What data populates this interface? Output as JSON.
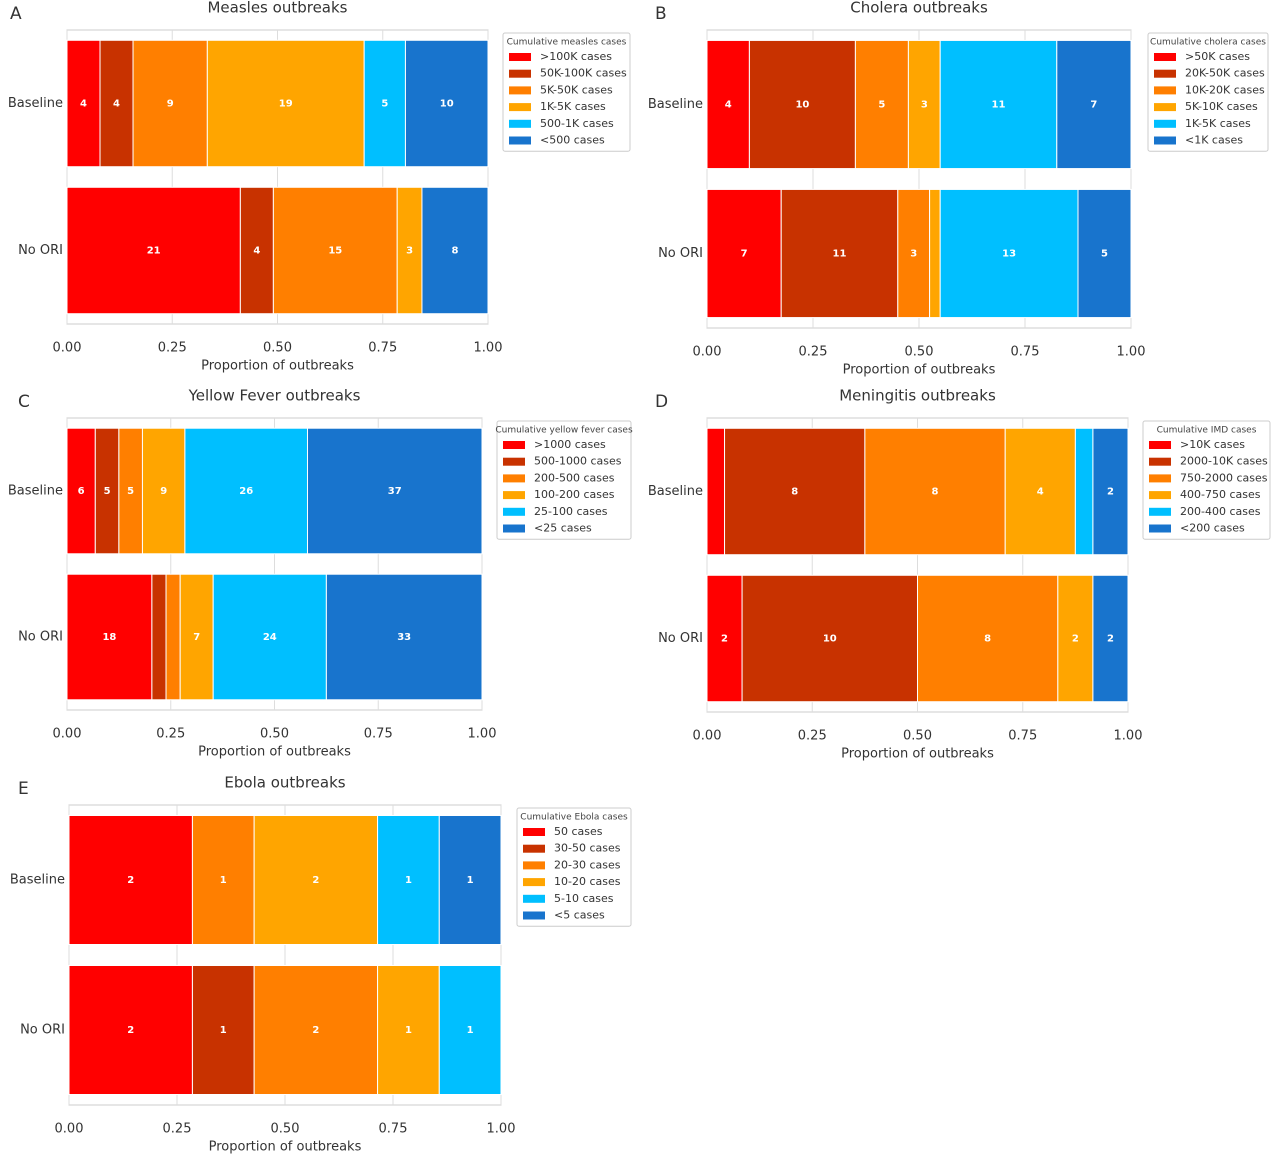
{
  "chart_data": [
    {
      "type": "bar",
      "orientation": "horizontal",
      "stacked": "percent",
      "panel_label": "A",
      "title": "Measles outbreaks",
      "xlabel": "Proportion of outbreaks",
      "legend_title": "Cumulative measles cases",
      "grid": true,
      "categories": [
        "Baseline",
        "No ORI"
      ],
      "series": [
        {
          "name": ">100K cases",
          "color": "#ff0000",
          "values": [
            4,
            21
          ]
        },
        {
          "name": "50K-100K cases",
          "color": "#c83200",
          "values": [
            4,
            4
          ]
        },
        {
          "name": "5K-50K cases",
          "color": "#ff7f00",
          "values": [
            9,
            15
          ]
        },
        {
          "name": "1K-5K cases",
          "color": "#ffa500",
          "values": [
            19,
            3
          ]
        },
        {
          "name": "500-1K cases",
          "color": "#00bfff",
          "values": [
            5,
            0
          ]
        },
        {
          "name": "<500 cases",
          "color": "#1874cd",
          "values": [
            10,
            8
          ]
        }
      ],
      "xlim": [
        0,
        1
      ],
      "xticks": [
        {
          "value": 0,
          "label": "0.00"
        },
        {
          "value": 0.25,
          "label": "0.25"
        },
        {
          "value": 0.5,
          "label": "0.50"
        },
        {
          "value": 0.75,
          "label": "0.75"
        },
        {
          "value": 1,
          "label": "1.00"
        }
      ]
    },
    {
      "type": "bar",
      "orientation": "horizontal",
      "stacked": "percent",
      "panel_label": "B",
      "title": "Cholera outbreaks",
      "xlabel": "Proportion of outbreaks",
      "legend_title": "Cumulative cholera cases",
      "grid": true,
      "categories": [
        "Baseline",
        "No ORI"
      ],
      "series": [
        {
          "name": ">50K cases",
          "color": "#ff0000",
          "values": [
            4,
            7
          ]
        },
        {
          "name": "20K-50K cases",
          "color": "#c83200",
          "values": [
            10,
            11
          ]
        },
        {
          "name": "10K-20K cases",
          "color": "#ff7f00",
          "values": [
            5,
            3
          ]
        },
        {
          "name": "5K-10K cases",
          "color": "#ffa500",
          "values": [
            3,
            1
          ]
        },
        {
          "name": "1K-5K cases",
          "color": "#00bfff",
          "values": [
            11,
            13
          ]
        },
        {
          "name": "<1K cases",
          "color": "#1874cd",
          "values": [
            7,
            5
          ]
        }
      ],
      "xlim": [
        0,
        1
      ],
      "xticks": [
        {
          "value": 0,
          "label": "0.00"
        },
        {
          "value": 0.25,
          "label": "0.25"
        },
        {
          "value": 0.5,
          "label": "0.50"
        },
        {
          "value": 0.75,
          "label": "0.75"
        },
        {
          "value": 1,
          "label": "1.00"
        }
      ]
    },
    {
      "type": "bar",
      "orientation": "horizontal",
      "stacked": "percent",
      "panel_label": "C",
      "title": "Yellow Fever outbreaks",
      "xlabel": "Proportion of outbreaks",
      "legend_title": "Cumulative yellow fever cases",
      "grid": true,
      "categories": [
        "Baseline",
        "No ORI"
      ],
      "series": [
        {
          "name": ">1000 cases",
          "color": "#ff0000",
          "values": [
            6,
            18
          ]
        },
        {
          "name": "500-1000 cases",
          "color": "#c83200",
          "values": [
            5,
            3
          ]
        },
        {
          "name": "200-500 cases",
          "color": "#ff7f00",
          "values": [
            5,
            3
          ]
        },
        {
          "name": "100-200 cases",
          "color": "#ffa500",
          "values": [
            9,
            7
          ]
        },
        {
          "name": "25-100 cases",
          "color": "#00bfff",
          "values": [
            26,
            24
          ]
        },
        {
          "name": "<25 cases",
          "color": "#1874cd",
          "values": [
            37,
            33
          ]
        }
      ],
      "xlim": [
        0,
        1
      ],
      "xticks": [
        {
          "value": 0,
          "label": "0.00"
        },
        {
          "value": 0.25,
          "label": "0.25"
        },
        {
          "value": 0.5,
          "label": "0.50"
        },
        {
          "value": 0.75,
          "label": "0.75"
        },
        {
          "value": 1,
          "label": "1.00"
        }
      ]
    },
    {
      "type": "bar",
      "orientation": "horizontal",
      "stacked": "percent",
      "panel_label": "D",
      "title": "Meningitis outbreaks",
      "xlabel": "Proportion of outbreaks",
      "legend_title": "Cumulative IMD cases",
      "grid": true,
      "categories": [
        "Baseline",
        "No ORI"
      ],
      "series": [
        {
          "name": ">10K cases",
          "color": "#ff0000",
          "values": [
            1,
            2
          ]
        },
        {
          "name": "2000-10K cases",
          "color": "#c83200",
          "values": [
            8,
            10
          ]
        },
        {
          "name": "750-2000 cases",
          "color": "#ff7f00",
          "values": [
            8,
            8
          ]
        },
        {
          "name": "400-750 cases",
          "color": "#ffa500",
          "values": [
            4,
            2
          ]
        },
        {
          "name": "200-400 cases",
          "color": "#00bfff",
          "values": [
            1,
            0
          ]
        },
        {
          "name": "<200 cases",
          "color": "#1874cd",
          "values": [
            2,
            2
          ]
        }
      ],
      "xlim": [
        0,
        1
      ],
      "xticks": [
        {
          "value": 0,
          "label": "0.00"
        },
        {
          "value": 0.25,
          "label": "0.25"
        },
        {
          "value": 0.5,
          "label": "0.50"
        },
        {
          "value": 0.75,
          "label": "0.75"
        },
        {
          "value": 1,
          "label": "1.00"
        }
      ]
    },
    {
      "type": "bar",
      "orientation": "horizontal",
      "stacked": "percent",
      "panel_label": "E",
      "title": "Ebola outbreaks",
      "xlabel": "Proportion of outbreaks",
      "legend_title": "Cumulative Ebola cases",
      "grid": true,
      "categories": [
        "Baseline",
        "No ORI"
      ],
      "series": [
        {
          "name": "50 cases",
          "color": "#ff0000",
          "values": [
            2,
            2
          ]
        },
        {
          "name": "30-50 cases",
          "color": "#c83200",
          "values": [
            0,
            1
          ]
        },
        {
          "name": "20-30 cases",
          "color": "#ff7f00",
          "values": [
            1,
            2
          ]
        },
        {
          "name": "10-20 cases",
          "color": "#ffa500",
          "values": [
            2,
            1
          ]
        },
        {
          "name": "5-10 cases",
          "color": "#00bfff",
          "values": [
            1,
            1
          ]
        },
        {
          "name": "<5 cases",
          "color": "#1874cd",
          "values": [
            1,
            0
          ]
        }
      ],
      "xlim": [
        0,
        1
      ],
      "xticks": [
        {
          "value": 0,
          "label": "0.00"
        },
        {
          "value": 0.25,
          "label": "0.25"
        },
        {
          "value": 0.5,
          "label": "0.50"
        },
        {
          "value": 0.75,
          "label": "0.75"
        },
        {
          "value": 1,
          "label": "1.00"
        }
      ]
    }
  ]
}
